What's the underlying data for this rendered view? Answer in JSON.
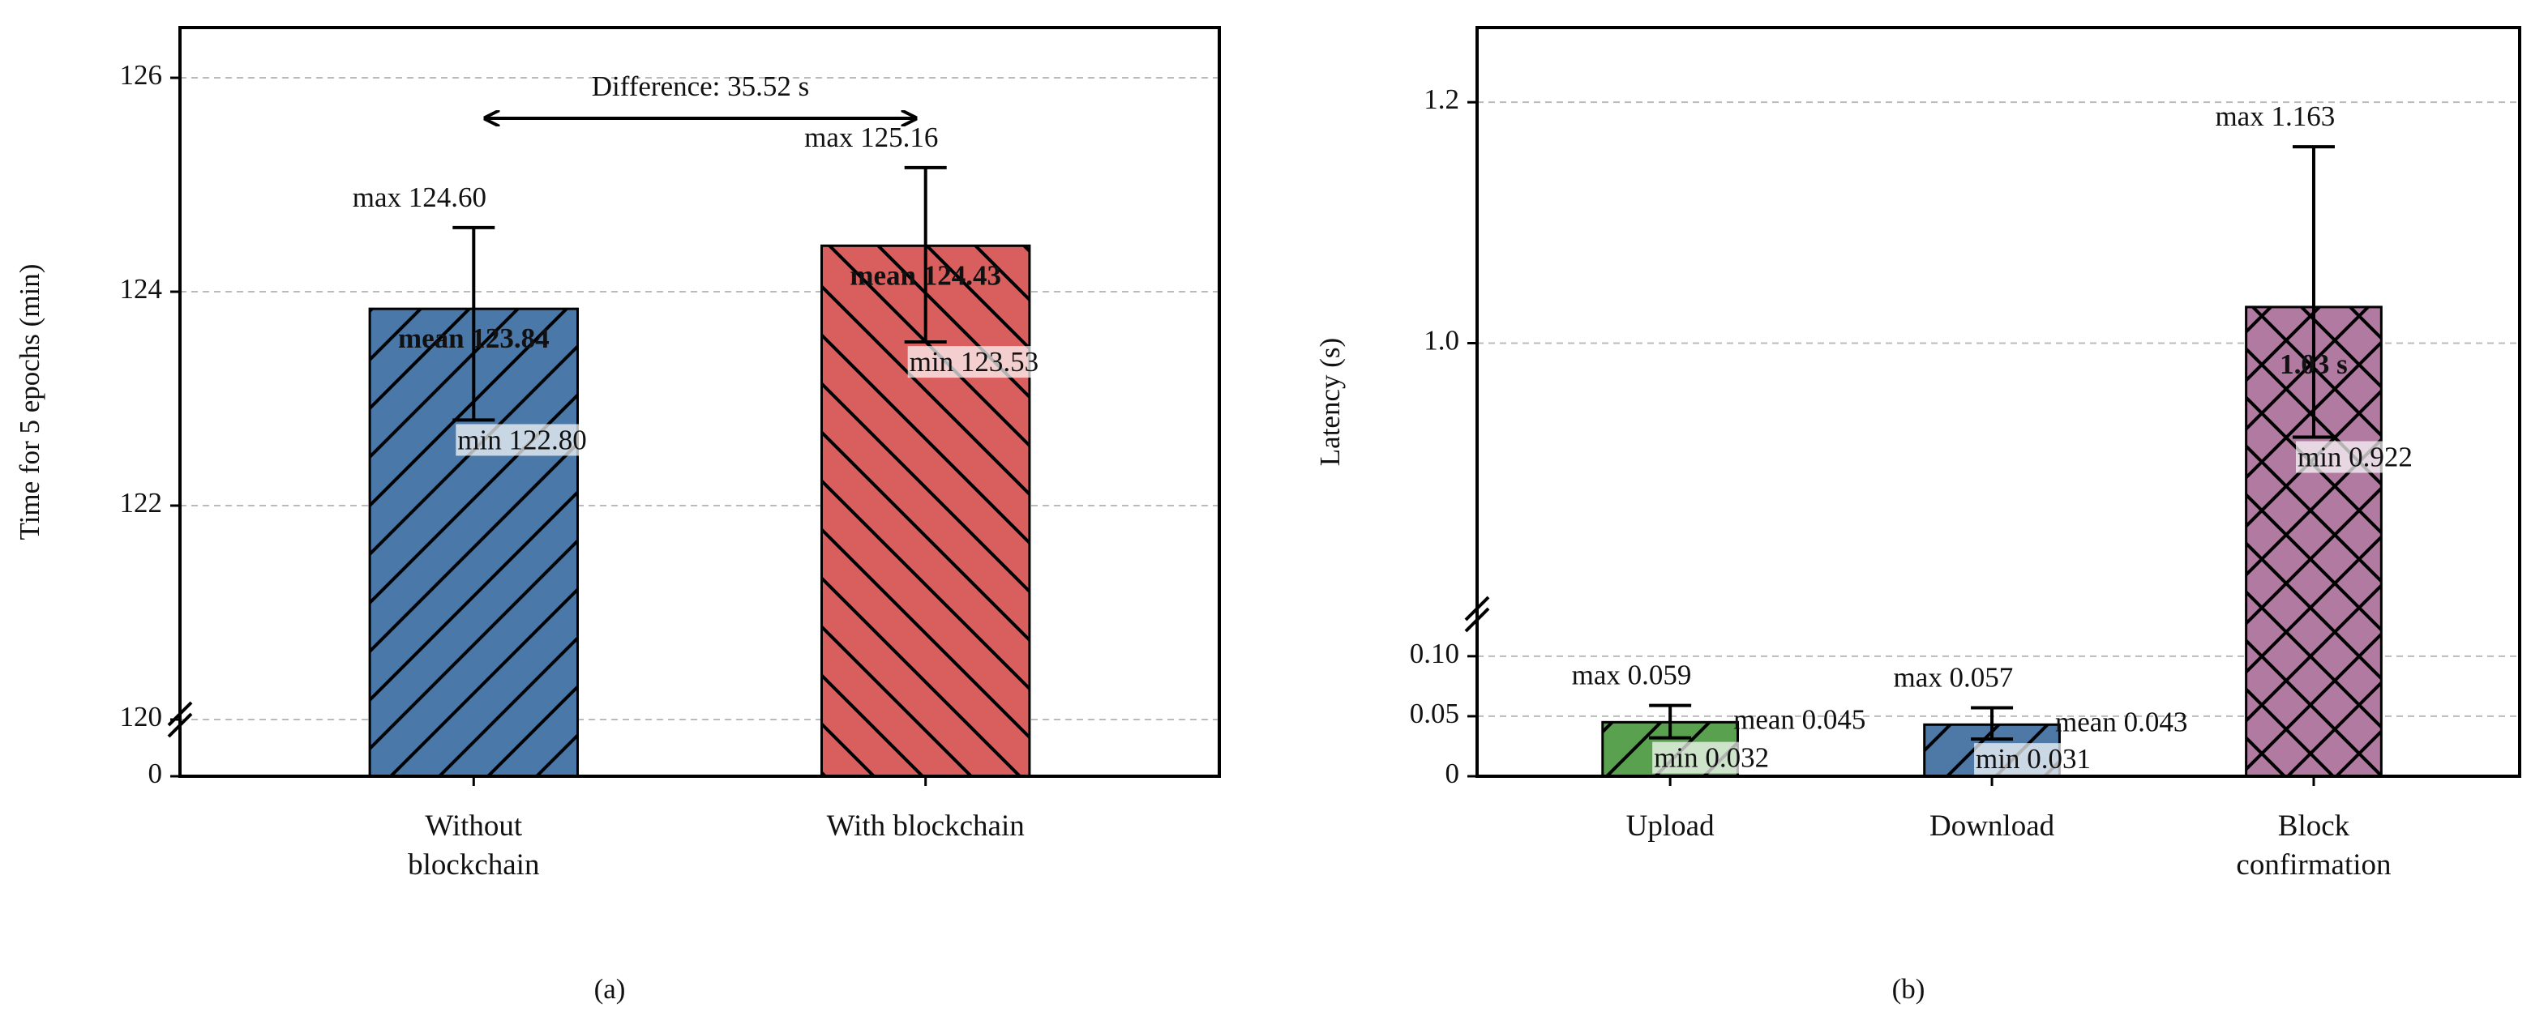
{
  "chart_data": [
    {
      "type": "bar",
      "panel": "(a)",
      "ylabel": "Time for 5 epochs (min)",
      "categories": [
        "Without blockchain",
        "With blockchain"
      ],
      "values": [
        123.84,
        124.43
      ],
      "value_labels": [
        "mean 123.84",
        "mean 124.43"
      ],
      "min": [
        122.8,
        123.53
      ],
      "min_labels": [
        "min 122.80",
        "min 123.53"
      ],
      "max": [
        124.6,
        125.16
      ],
      "max_labels": [
        "max 124.60",
        "max 125.16"
      ],
      "colors": [
        "#4a78a8",
        "#d95f5e"
      ],
      "hatches": [
        "/",
        "\\"
      ],
      "ylim_lower": [
        0,
        120
      ],
      "ylim": [
        120,
        126.47
      ],
      "yticks": [
        0,
        120,
        122,
        124,
        126
      ],
      "grid": true,
      "annotation": "Difference: 35.52 s"
    },
    {
      "type": "bar",
      "panel": "(b)",
      "ylabel": "Latency (s)",
      "categories": [
        "Upload",
        "Download",
        "Block confirmation"
      ],
      "values": [
        0.045,
        0.043,
        1.03
      ],
      "value_labels": [
        "mean 0.045",
        "mean 0.043",
        "1.03 s"
      ],
      "min": [
        0.032,
        0.031,
        0.922
      ],
      "min_labels": [
        "min 0.032",
        "min 0.031",
        "min 0.922"
      ],
      "max": [
        0.059,
        0.057,
        1.163
      ],
      "max_labels": [
        "max 0.059",
        "max 0.057",
        "max 1.163"
      ],
      "colors": [
        "#59a14f",
        "#4e79a7",
        "#b07aa1"
      ],
      "hatches": [
        "/",
        "/",
        "x"
      ],
      "ylim_lower": [
        0,
        0.135
      ],
      "ylim": [
        0.775,
        1.262
      ],
      "yticks": [
        0,
        0.05,
        {
          "value": 0.1,
          "label": "0.10"
        },
        {
          "value": 1,
          "label": "1.0"
        },
        1.2
      ],
      "grid": true
    }
  ]
}
